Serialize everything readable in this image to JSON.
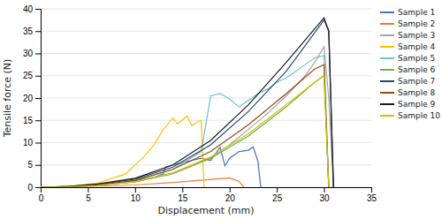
{
  "chart_data": {
    "type": "line",
    "xlabel": "Displacement (mm)",
    "ylabel": "Tensile force (N)",
    "xlim": [
      0,
      35
    ],
    "ylim": [
      0,
      40
    ],
    "xticks": [
      0,
      5,
      10,
      15,
      20,
      25,
      30,
      35
    ],
    "yticks": [
      0,
      5,
      10,
      15,
      20,
      25,
      30,
      35,
      40
    ],
    "grid": true,
    "legend": "right",
    "series": [
      {
        "name": "Sample 1",
        "color": "#4472c4",
        "x": [
          0,
          2,
          4,
          6,
          8,
          10,
          12,
          13.0,
          13.2,
          14,
          15,
          16,
          17,
          18,
          19,
          19.5,
          20.0,
          21.0,
          22.0,
          22.5,
          23.0,
          23.3
        ],
        "values": [
          0,
          0.1,
          0.3,
          0.5,
          0.9,
          1.4,
          2.2,
          3.0,
          4.5,
          5.0,
          5.5,
          6.0,
          6.5,
          6.0,
          9.0,
          4.8,
          6.5,
          8.0,
          8.3,
          9.0,
          5.8,
          0.0
        ]
      },
      {
        "name": "Sample 2",
        "color": "#ed7d31",
        "x": [
          0,
          5,
          10,
          15,
          20,
          21,
          21.5
        ],
        "values": [
          0,
          0.2,
          0.5,
          1.2,
          2.1,
          1.3,
          0.0
        ]
      },
      {
        "name": "Sample 3",
        "color": "#a5a5a5",
        "x": [
          0,
          3,
          6,
          10,
          14,
          18,
          20,
          22,
          24,
          26,
          28,
          29,
          30,
          30.5,
          31.0
        ],
        "values": [
          0,
          0.1,
          0.4,
          1.2,
          3.0,
          6.5,
          9.5,
          13.0,
          16.5,
          20.5,
          25.0,
          28.0,
          31.5,
          20.0,
          0.0
        ]
      },
      {
        "name": "Sample 4",
        "color": "#ffc000",
        "x": [
          0,
          3,
          6,
          9,
          11,
          12,
          13,
          14,
          14.5,
          15.5,
          16.0,
          16.5,
          17.0,
          17.3
        ],
        "values": [
          0,
          0.2,
          0.9,
          3.0,
          7.0,
          9.5,
          13.0,
          15.5,
          14.2,
          16.0,
          13.8,
          14.5,
          15.0,
          0.0
        ]
      },
      {
        "name": "Sample 5",
        "color": "#70c0d0",
        "x": [
          0,
          3,
          6,
          10,
          14,
          17,
          18,
          19,
          20,
          21,
          22,
          23,
          24,
          25,
          26,
          27,
          28,
          29,
          30,
          30.5
        ],
        "values": [
          0,
          0.1,
          0.5,
          1.5,
          4.0,
          8.0,
          20.5,
          21.0,
          19.8,
          18.0,
          19.5,
          21.0,
          22.0,
          23.5,
          24.5,
          26.0,
          27.5,
          29.0,
          29.5,
          0.0
        ]
      },
      {
        "name": "Sample 6",
        "color": "#70ad47",
        "x": [
          0,
          3,
          6,
          10,
          14,
          18,
          22,
          26,
          29,
          30,
          30.5
        ],
        "values": [
          0,
          0.1,
          0.4,
          1.2,
          3.2,
          6.5,
          11.5,
          18.0,
          23.5,
          25.0,
          0.0
        ]
      },
      {
        "name": "Sample 7",
        "color": "#264478",
        "x": [
          0,
          3,
          6,
          10,
          14,
          18,
          22,
          26,
          30,
          30.5,
          31.0
        ],
        "values": [
          0,
          0.2,
          0.6,
          1.8,
          4.5,
          9.5,
          17.0,
          26.0,
          37.5,
          35.0,
          0.0
        ]
      },
      {
        "name": "Sample 8",
        "color": "#9e480e",
        "x": [
          0,
          3,
          6,
          10,
          14,
          18,
          22,
          26,
          29,
          30,
          30.5
        ],
        "values": [
          0,
          0.15,
          0.5,
          1.5,
          4.0,
          8.0,
          14.0,
          21.0,
          26.5,
          27.5,
          0.0
        ]
      },
      {
        "name": "Sample 9",
        "color": "#1a1a1a",
        "x": [
          0,
          3,
          6,
          10,
          14,
          18,
          22,
          26,
          30,
          30.5,
          31.0
        ],
        "values": [
          0,
          0.2,
          0.7,
          2.0,
          5.0,
          10.5,
          18.5,
          28.0,
          38.0,
          35.0,
          0.0
        ]
      },
      {
        "name": "Sample 10",
        "color": "#c9c500",
        "x": [
          0,
          3,
          6,
          10,
          14,
          18,
          22,
          26,
          29,
          30,
          30.5
        ],
        "values": [
          0,
          0.1,
          0.4,
          1.2,
          3.2,
          6.8,
          12.0,
          18.5,
          23.5,
          25.0,
          0.0
        ]
      }
    ]
  }
}
